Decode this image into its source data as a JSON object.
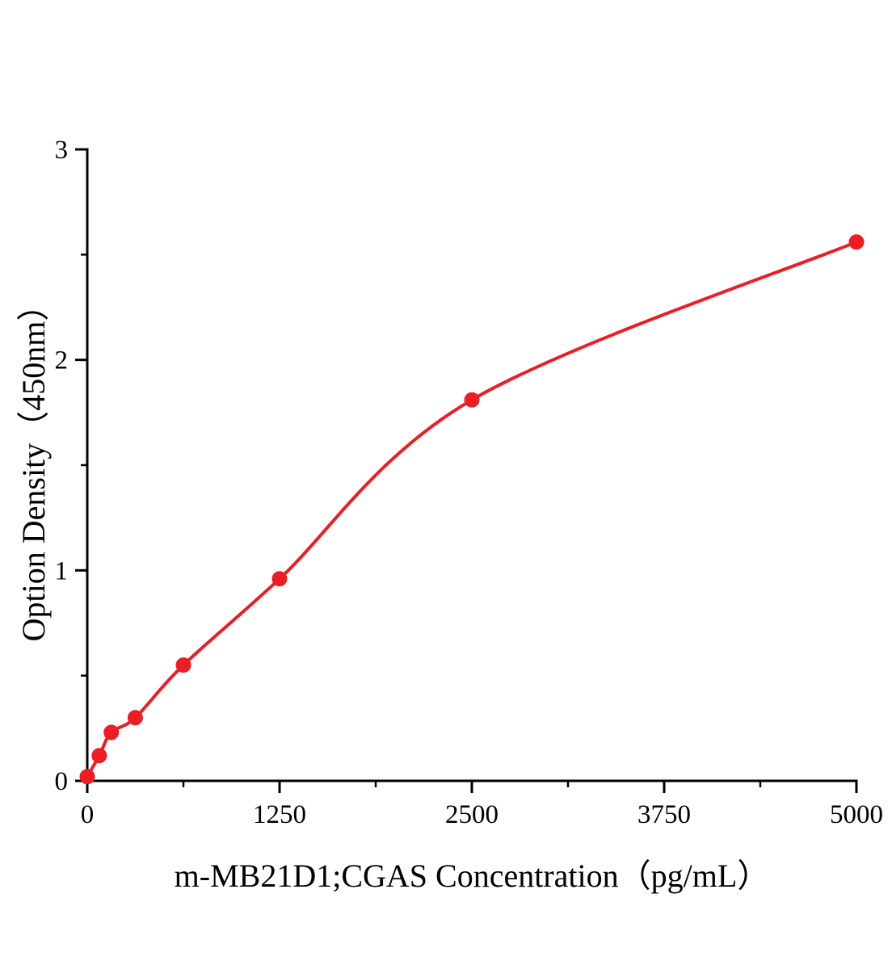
{
  "chart_data": {
    "type": "scatter",
    "title": "",
    "xlabel": "m-MB21D1;CGAS Concentration（pg/mL）",
    "ylabel": "Option Density（450nm）",
    "x": [
      0,
      78,
      156,
      312,
      625,
      1250,
      2500,
      5000
    ],
    "y": [
      0.02,
      0.12,
      0.23,
      0.3,
      0.55,
      0.96,
      1.81,
      2.56
    ],
    "curve": "smooth 4PL-style fit through the data points",
    "xlim": [
      0,
      5000
    ],
    "ylim": [
      0,
      3
    ],
    "x_ticks": [
      0,
      1250,
      2500,
      3750,
      5000
    ],
    "y_ticks": [
      0,
      1,
      2,
      3
    ],
    "x_minor_ticks": [
      625,
      1875,
      3125,
      4375
    ],
    "y_minor_ticks": [
      0.5,
      1.5,
      2.5
    ],
    "point_color": "#ee1c23",
    "line_color": "#ee1c23",
    "axis_color": "#000000",
    "grid": false,
    "legend": null
  }
}
